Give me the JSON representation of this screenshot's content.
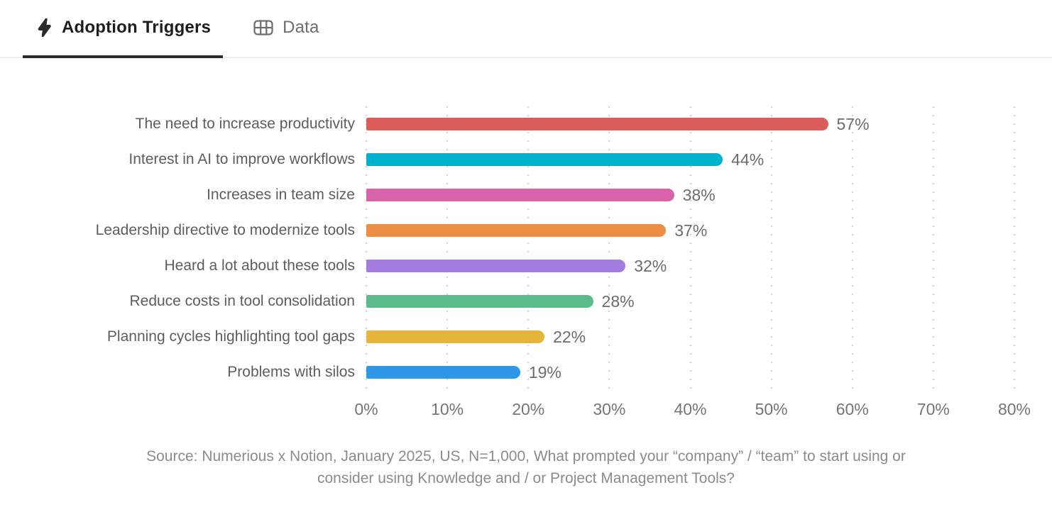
{
  "tabs": [
    {
      "label": "Adoption Triggers",
      "icon": "lightning-icon",
      "active": true
    },
    {
      "label": "Data",
      "icon": "table-icon",
      "active": false
    }
  ],
  "chart_data": {
    "type": "bar",
    "orientation": "horizontal",
    "title": "Adoption Triggers",
    "categories": [
      "The need to increase productivity",
      "Interest in AI to improve workflows",
      "Increases in team size",
      "Leadership directive to modernize tools",
      "Heard a lot about these tools",
      "Reduce costs in tool consolidation",
      "Planning cycles highlighting tool gaps",
      "Problems with silos"
    ],
    "values": [
      57,
      44,
      38,
      37,
      32,
      28,
      22,
      19
    ],
    "value_labels": [
      "57%",
      "44%",
      "38%",
      "37%",
      "32%",
      "28%",
      "22%",
      "19%"
    ],
    "colors": [
      "#db5c58",
      "#00b1ce",
      "#d863a9",
      "#ec8e44",
      "#a47bde",
      "#5bbb8b",
      "#e5b63b",
      "#2f97e8"
    ],
    "xlabel": "",
    "ylabel": "",
    "xlim": [
      0,
      80
    ],
    "x_ticks": [
      "0%",
      "10%",
      "20%",
      "30%",
      "40%",
      "50%",
      "60%",
      "70%",
      "80%"
    ],
    "grid": "dotted-vertical",
    "legend": "none"
  },
  "source": {
    "line1": "Source: Numerious x Notion, January 2025, US, N=1,000, What prompted your “company” / “team” to start using or",
    "line2": "consider using Knowledge and / or Project Management Tools?"
  }
}
